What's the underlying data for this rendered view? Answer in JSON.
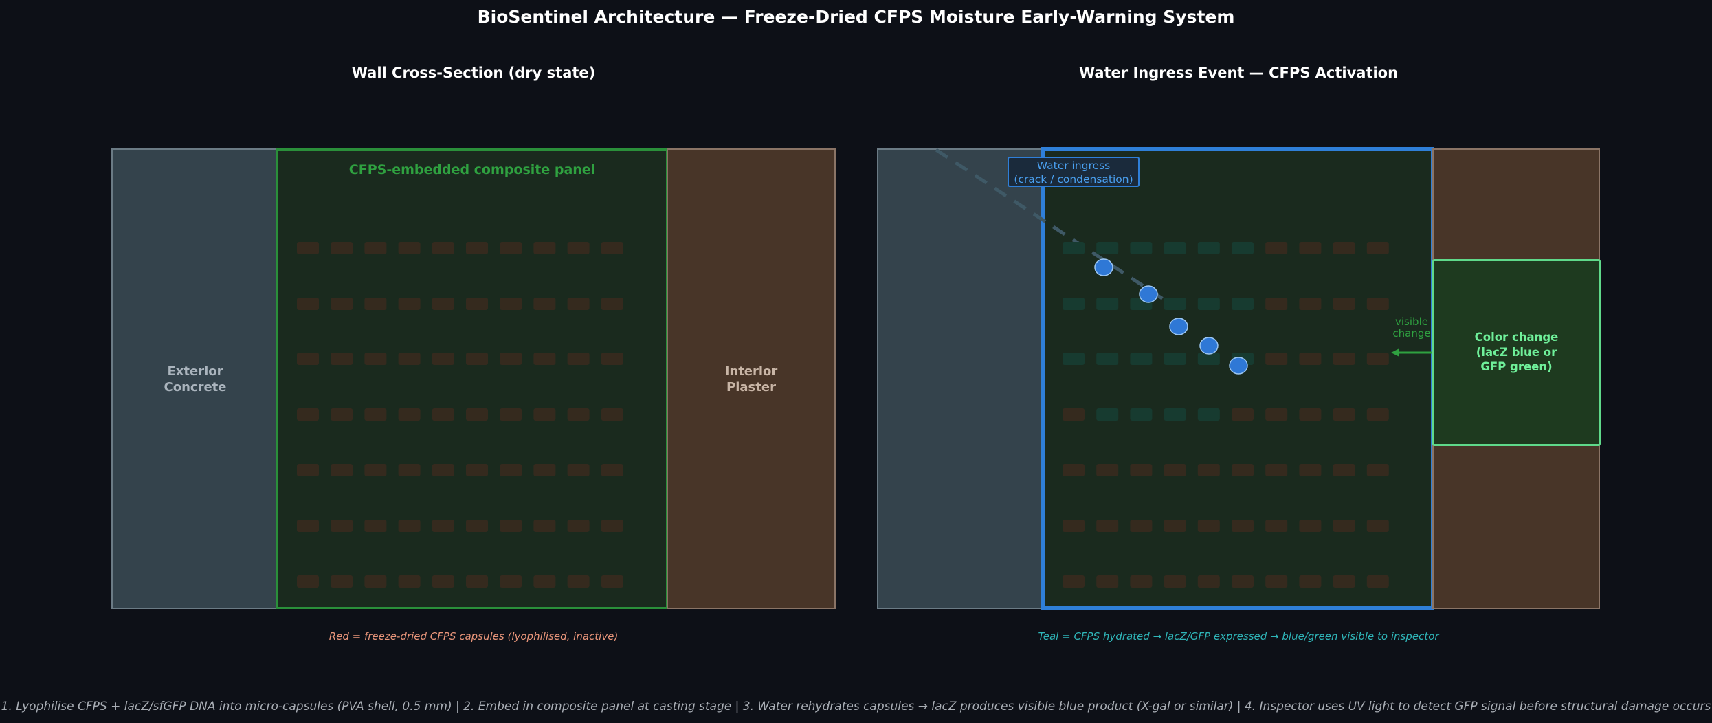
{
  "title": "BioSentinel Architecture — Freeze-Dried CFPS Moisture Early-Warning System",
  "left_panel": {
    "title": "Wall Cross-Section (dry state)",
    "exterior_label": "Exterior\nConcrete",
    "composite_label": "CFPS-embedded composite panel",
    "interior_label": "Interior\nPlaster",
    "caption": "Red = freeze-dried CFPS capsules (lyophilised, inactive)"
  },
  "right_panel": {
    "title": "Water Ingress Event — CFPS Activation",
    "water_label": "Water ingress\n(crack / condensation)",
    "visible_change_label": "visible\nchange",
    "color_change_label": "Color change\n(lacZ blue or\nGFP green)",
    "caption": "Teal = CFPS hydrated → lacZ/GFP expressed → blue/green visible to inspector"
  },
  "footer": "1. Lyophilise CFPS + lacZ/sfGFP DNA into micro-capsules (PVA shell, 0.5 mm)  |  2. Embed in composite panel at casting stage  |  3. Water rehydrates capsules → lacZ produces visible blue product (X-gal or similar)  |  4. Inspector uses UV light to detect GFP signal before structural damage occurs",
  "colors": {
    "background": "#0d1017",
    "concrete": "#34434c",
    "composite": "#1a2a1e",
    "plaster": "#483528",
    "composite_border_dry": "#2a8f3a",
    "composite_border_wet": "#2f7fd8",
    "capsule_inactive": "#352a1e",
    "capsule_active": "#173b30",
    "water_droplet": "#2f78d6",
    "color_change_fill": "#1e3a1f",
    "color_change_border": "#5fd98a",
    "caption_red": "#e8957a",
    "caption_teal": "#2fb5b8"
  }
}
